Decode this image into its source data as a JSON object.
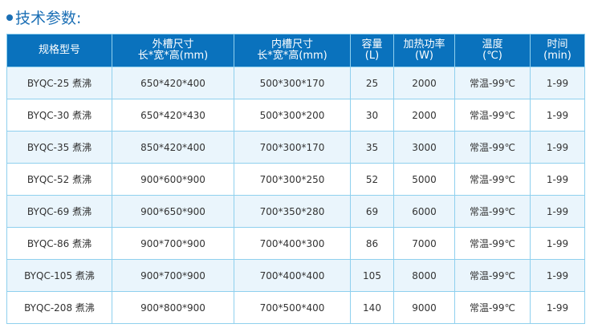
{
  "title": "技术参数:",
  "headers": [
    {
      "l1": "规格型号",
      "l2": ""
    },
    {
      "l1": "外槽尺寸",
      "l2": "长*宽*高(mm)"
    },
    {
      "l1": "内槽尺寸",
      "l2": "长*宽*高(mm)"
    },
    {
      "l1": "容量",
      "l2": "(L)"
    },
    {
      "l1": "加热功率",
      "l2": "(W)"
    },
    {
      "l1": "温度",
      "l2": "(℃)"
    },
    {
      "l1": "时间",
      "l2": "(min)"
    }
  ],
  "rows": [
    [
      "BYQC-25 煮沸",
      "650*420*400",
      "500*300*170",
      "25",
      "2000",
      "常温-99℃",
      "1-99"
    ],
    [
      "BYQC-30 煮沸",
      "650*420*430",
      "500*300*200",
      "30",
      "2000",
      "常温-99℃",
      "1-99"
    ],
    [
      "BYQC-35 煮沸",
      "850*420*400",
      "700*300*170",
      "35",
      "3000",
      "常温-99℃",
      "1-99"
    ],
    [
      "BYQC-52 煮沸",
      "900*600*900",
      "700*300*250",
      "52",
      "5000",
      "常温-99℃",
      "1-99"
    ],
    [
      "BYQC-69 煮沸",
      "900*650*900",
      "700*350*280",
      "69",
      "6000",
      "常温-99℃",
      "1-99"
    ],
    [
      "BYQC-86 煮沸",
      "900*700*900",
      "700*400*300",
      "86",
      "7000",
      "常温-99℃",
      "1-99"
    ],
    [
      "BYQC-105 煮沸",
      "900*700*900",
      "700*400*400",
      "105",
      "8000",
      "常温-99℃",
      "1-99"
    ],
    [
      "BYQC-208 煮沸",
      "900*800*900",
      "700*500*400",
      "140",
      "9000",
      "常温-99℃",
      "1-99"
    ]
  ]
}
